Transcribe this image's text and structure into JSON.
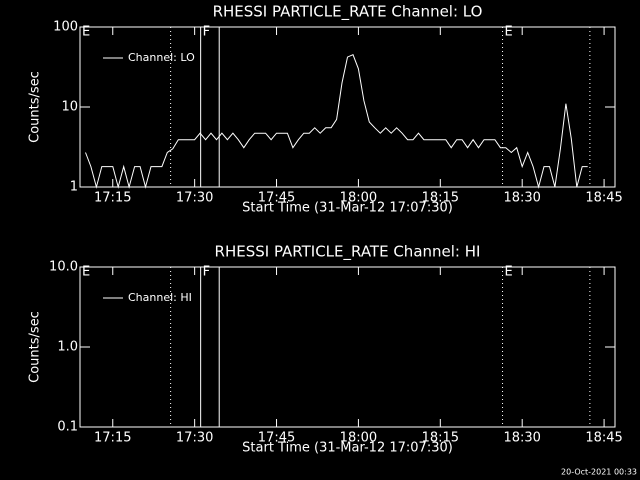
{
  "chart_data": [
    {
      "type": "line",
      "title": "RHESSI PARTICLE_RATE Channel: LO",
      "xlabel": "Start Time (31-Mar-12 17:07:30)",
      "ylabel": "Counts/sec",
      "x": [
        1030,
        1031,
        1032,
        1033,
        1034,
        1035,
        1036,
        1037,
        1038,
        1039,
        1040,
        1041,
        1042,
        1043,
        1044,
        1045,
        1046,
        1047,
        1048,
        1049,
        1050,
        1051,
        1052,
        1053,
        1054,
        1055,
        1056,
        1057,
        1058,
        1059,
        1060,
        1061,
        1062,
        1063,
        1064,
        1065,
        1066,
        1067,
        1068,
        1069,
        1070,
        1071,
        1072,
        1073,
        1074,
        1075,
        1076,
        1077,
        1078,
        1079,
        1080,
        1081,
        1082,
        1083,
        1084,
        1085,
        1086,
        1087,
        1088,
        1089,
        1090,
        1091,
        1092,
        1093,
        1094,
        1095,
        1096,
        1097,
        1098,
        1099,
        1100,
        1101,
        1102,
        1103,
        1104,
        1105,
        1106,
        1107,
        1108,
        1109,
        1110,
        1111,
        1112,
        1113,
        1114,
        1115,
        1116,
        1117,
        1118,
        1119,
        1120,
        1121,
        1122
      ],
      "series": [
        {
          "name": "Channel: LO",
          "color": "#ffffff",
          "values": [
            2.7,
            1.8,
            1,
            1.8,
            1.8,
            1.8,
            1,
            1.8,
            1,
            1.8,
            1.8,
            1,
            1.8,
            1.8,
            1.8,
            2.7,
            3,
            3.9,
            3.9,
            3.9,
            3.9,
            4.7,
            3.9,
            4.7,
            3.9,
            4.7,
            3.9,
            4.7,
            3.9,
            3.1,
            3.9,
            4.7,
            4.7,
            4.7,
            3.9,
            4.7,
            4.7,
            4.7,
            3.1,
            3.9,
            4.7,
            4.7,
            5.5,
            4.7,
            5.5,
            5.5,
            7,
            20,
            42,
            45,
            30,
            12,
            6.5,
            5.5,
            4.7,
            5.5,
            4.7,
            5.5,
            4.7,
            3.9,
            3.9,
            4.7,
            3.9,
            3.9,
            3.9,
            3.9,
            3.9,
            3.1,
            3.9,
            3.9,
            3.1,
            3.9,
            3.1,
            3.9,
            3.9,
            3.9,
            3.1,
            3.1,
            2.7,
            3.1,
            1.8,
            2.7,
            1.8,
            1,
            1.8,
            1.8,
            1,
            3,
            11,
            4,
            1,
            1.8,
            1.8
          ]
        }
      ],
      "xlim": [
        1029,
        1127
      ],
      "xticks": [
        {
          "value": 1035,
          "label": "17:15"
        },
        {
          "value": 1050,
          "label": "17:30"
        },
        {
          "value": 1065,
          "label": "17:45"
        },
        {
          "value": 1080,
          "label": "18:00"
        },
        {
          "value": 1095,
          "label": "18:15"
        },
        {
          "value": 1110,
          "label": "18:30"
        },
        {
          "value": 1125,
          "label": "18:45"
        }
      ],
      "ylim": [
        1,
        100
      ],
      "yticks": [
        1,
        10,
        100
      ],
      "log_y": true,
      "legend": "upper left",
      "markers": [
        {
          "x": 1029,
          "label": "E",
          "style": "solid"
        },
        {
          "x": 1045.6,
          "style": "dotted"
        },
        {
          "x": 1051.1,
          "label": "F",
          "style": "solid"
        },
        {
          "x": 1054.5,
          "style": "solid"
        },
        {
          "x": 1106.4,
          "label": "E",
          "style": "dotted"
        },
        {
          "x": 1122.4,
          "style": "dotted"
        }
      ]
    },
    {
      "type": "line",
      "title": "RHESSI PARTICLE_RATE Channel: HI",
      "xlabel": "Start Time (31-Mar-12 17:07:30)",
      "ylabel": "Counts/sec",
      "x": [],
      "series": [
        {
          "name": "Channel: HI",
          "color": "#ffffff",
          "values": []
        }
      ],
      "xlim": [
        1029,
        1127
      ],
      "xticks": [
        {
          "value": 1035,
          "label": "17:15"
        },
        {
          "value": 1050,
          "label": "17:30"
        },
        {
          "value": 1065,
          "label": "17:45"
        },
        {
          "value": 1080,
          "label": "18:00"
        },
        {
          "value": 1095,
          "label": "18:15"
        },
        {
          "value": 1110,
          "label": "18:30"
        },
        {
          "value": 1125,
          "label": "18:45"
        }
      ],
      "ylim": [
        0.1,
        10
      ],
      "yticks": [
        0.1,
        {
          "value": 1,
          "label": "1.0"
        },
        {
          "value": 10,
          "label": "10.0"
        }
      ],
      "log_y": true,
      "legend": "upper left",
      "markers": [
        {
          "x": 1029,
          "label": "E",
          "style": "solid"
        },
        {
          "x": 1045.6,
          "style": "dotted"
        },
        {
          "x": 1051.1,
          "label": "F",
          "style": "solid"
        },
        {
          "x": 1054.5,
          "style": "solid"
        },
        {
          "x": 1106.4,
          "label": "E",
          "style": "dotted"
        },
        {
          "x": 1122.4,
          "style": "dotted"
        }
      ]
    }
  ],
  "footer": "20-Oct-2021 00:33"
}
